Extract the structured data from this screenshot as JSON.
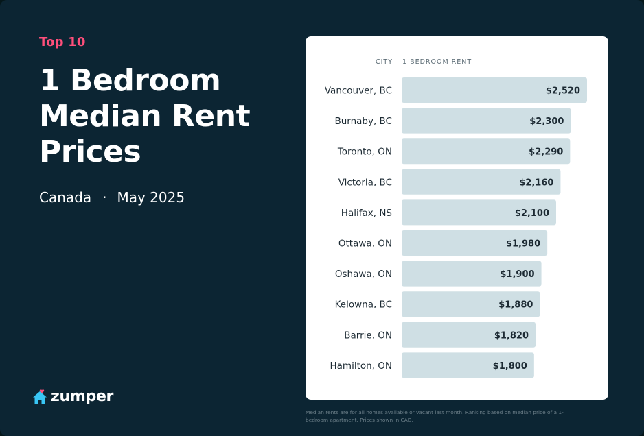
{
  "header": {
    "eyebrow": "Top 10",
    "title": "1 Bedroom Median Rent Prices",
    "region": "Canada",
    "separator": "·",
    "date": "May 2025"
  },
  "brand": {
    "name": "zumper",
    "icon": "house-icon",
    "icon_color": "#39c6f5",
    "accent_color": "#ff4f7b"
  },
  "colors": {
    "background": "#0c2533",
    "card": "#ffffff",
    "bar": "#cfdfe4",
    "text_dark": "#1c2a33"
  },
  "footnote": "Median rents are for all homes available or vacant last month. Ranking based on median price of a 1-bedroom apartment. Prices shown in CAD.",
  "chart_data": {
    "type": "bar",
    "orientation": "horizontal",
    "title": "",
    "category_header": "CITY",
    "value_header": "1 BEDROOM RENT",
    "categories": [
      "Vancouver, BC",
      "Burnaby, BC",
      "Toronto, ON",
      "Victoria, BC",
      "Halifax, NS",
      "Ottawa, ON",
      "Oshawa, ON",
      "Kelowna, BC",
      "Barrie, ON",
      "Hamilton, ON"
    ],
    "values": [
      2520,
      2300,
      2290,
      2160,
      2100,
      1980,
      1900,
      1880,
      1820,
      1800
    ],
    "value_labels": [
      "$2,520",
      "$2,300",
      "$2,290",
      "$2,160",
      "$2,100",
      "$1,980",
      "$1,900",
      "$1,880",
      "$1,820",
      "$1,800"
    ],
    "unit": "CAD",
    "xlim": [
      0,
      2520
    ],
    "grid": false,
    "legend": "none"
  }
}
